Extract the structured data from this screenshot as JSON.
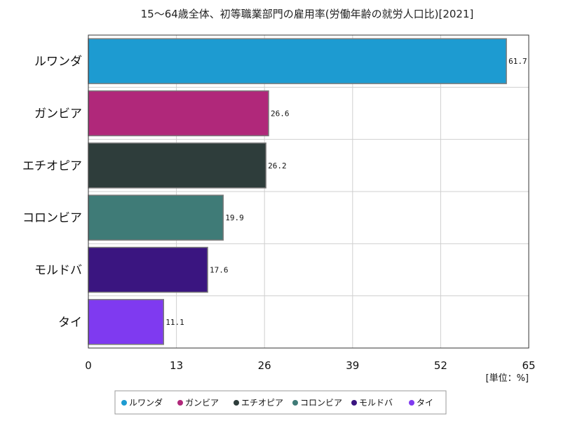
{
  "chart_data": {
    "type": "bar",
    "orientation": "horizontal",
    "title": "15～64歳全体、初等職業部門の雇用率(労働年齢の就労人口比)[2021]",
    "unit": "[単位：%]",
    "categories": [
      "ルワンダ",
      "ガンビア",
      "エチオピア",
      "コロンビア",
      "モルドバ",
      "タイ"
    ],
    "values": [
      61.7,
      26.6,
      26.2,
      19.9,
      17.6,
      11.1
    ],
    "value_labels": [
      "61.7",
      "26.6",
      "26.2",
      "19.9",
      "17.6",
      "11.1"
    ],
    "colors": [
      "#1d9bd1",
      "#b0287a",
      "#2e3d3b",
      "#3f7b77",
      "#3a1580",
      "#7f3af0"
    ],
    "xlim": [
      0,
      65
    ],
    "xticks": [
      0,
      13,
      26,
      39,
      52,
      65
    ],
    "xtick_labels": [
      "0",
      "13",
      "26",
      "39",
      "52",
      "65"
    ],
    "grid": true,
    "legend": {
      "placement": "bottom",
      "entries": [
        "ルワンダ",
        "ガンビア",
        "エチオピア",
        "コロンビア",
        "モルドバ",
        "タイ"
      ]
    }
  }
}
